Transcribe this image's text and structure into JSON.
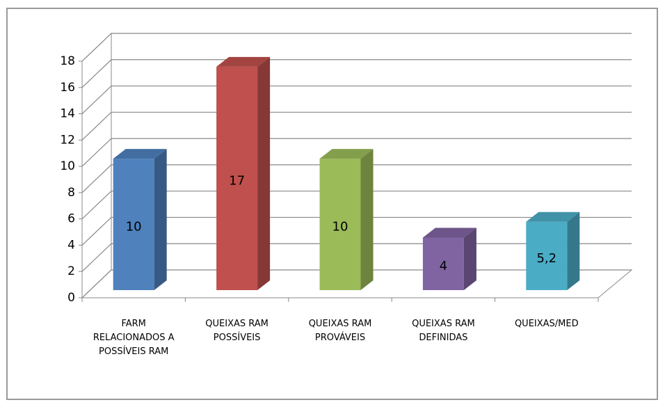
{
  "chart_data": {
    "type": "bar3d",
    "categories": [
      "FARM RELACIONADOS A POSSÍVEIS RAM",
      "QUEIXAS RAM POSSÍVEIS",
      "QUEIXAS RAM PROVÁVEIS",
      "QUEIXAS RAM DEFINIDAS",
      "QUEIXAS/MED"
    ],
    "values": [
      10,
      17,
      10,
      4,
      5.2
    ],
    "value_labels": [
      "10",
      "17",
      "10",
      "4",
      "5,2"
    ],
    "colors": [
      "#4f81bd",
      "#c0504d",
      "#9bbb59",
      "#8064a2",
      "#4bacc6"
    ],
    "ylim": [
      0,
      18
    ],
    "yticks": [
      0,
      2,
      4,
      6,
      8,
      10,
      12,
      14,
      16,
      18
    ],
    "grid": true
  }
}
